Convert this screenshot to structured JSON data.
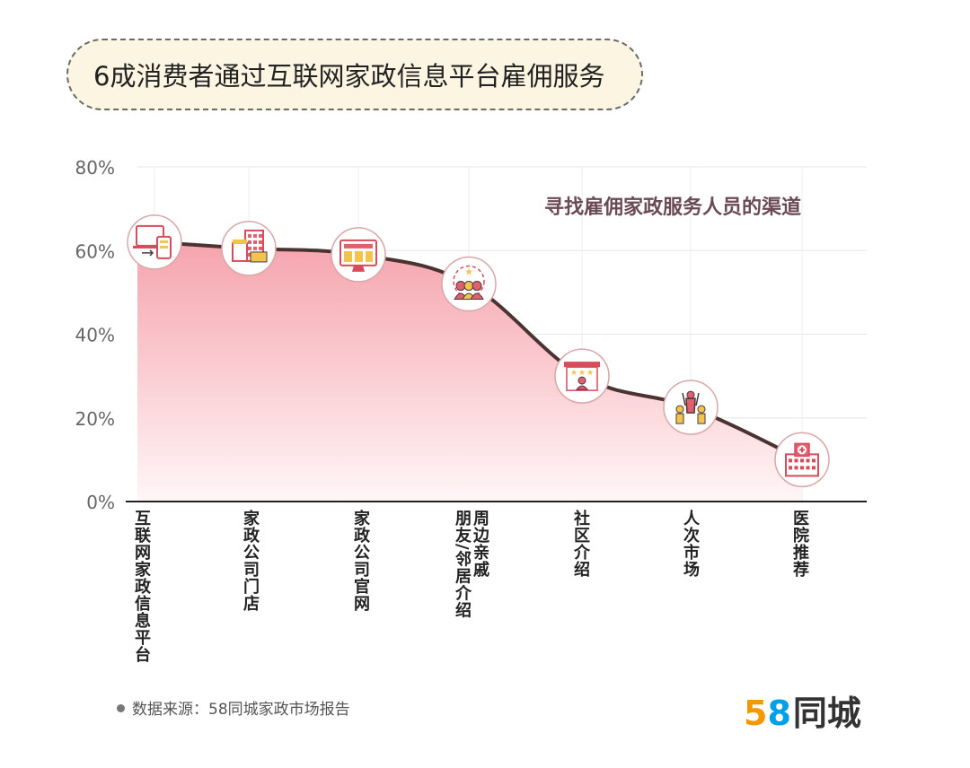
{
  "header": {
    "title": "6成消费者通过互联网家政信息平台雇佣服务"
  },
  "chart_data": {
    "type": "area",
    "title": "寻找雇佣家政服务人员的渠道",
    "xlabel": "",
    "ylabel": "",
    "ylim": [
      0,
      80
    ],
    "y_ticks": [
      "0%",
      "20%",
      "40%",
      "60%",
      "80%"
    ],
    "grid": true,
    "categories": [
      "互联网家政信息平台",
      "家政公司门店",
      "家政公司官网",
      "周边亲戚朋友/邻居介绍",
      "社区介绍",
      "人次市场",
      "医院推荐"
    ],
    "values": [
      62,
      60.5,
      59,
      52,
      30,
      22.5,
      10
    ],
    "icons": [
      "computer-phone-icon",
      "storefront-icon",
      "monitor-website-icon",
      "friends-group-icon",
      "community-board-icon",
      "people-market-icon",
      "hospital-icon"
    ],
    "colors": {
      "line": "#4a3330",
      "fill_top": "#f5a4ad",
      "fill_bottom": "#fff6f7",
      "marker_ring": "#d9a7a7",
      "subtitle": "#6a4a55"
    }
  },
  "xlabels": {
    "l0": "互联网家政信息平台",
    "l1": "家政公司门店",
    "l2": "家政公司官网",
    "l3a": "周边亲戚",
    "l3b": "朋友/邻居介绍",
    "l4": "社区介绍",
    "l5": "人次市场",
    "l6": "医院推荐"
  },
  "footer": {
    "source": "数据来源：58同城家政市场报告",
    "logo_five": "5",
    "logo_eight": "8",
    "logo_brand": "同城"
  }
}
